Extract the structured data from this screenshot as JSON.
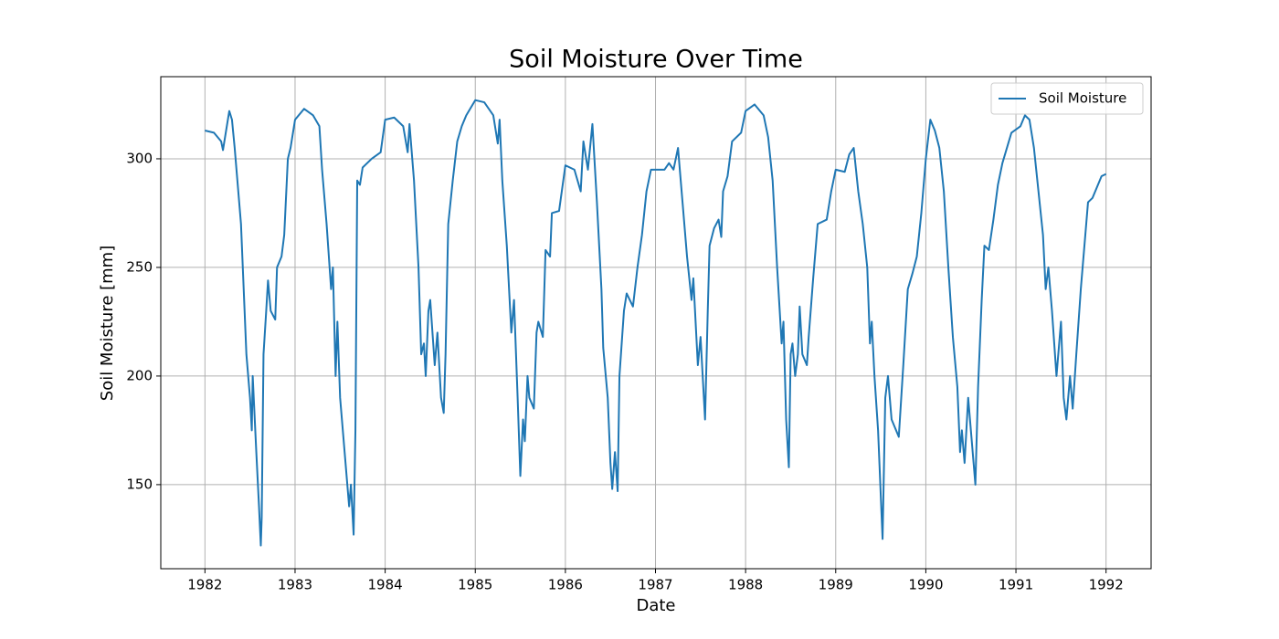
{
  "chart_data": {
    "type": "line",
    "title": "Soil Moisture Over Time",
    "xlabel": "Date",
    "ylabel": "Soil Moisture [mm]",
    "x": [
      1982.0,
      1982.1,
      1982.18,
      1982.2,
      1982.27,
      1982.3,
      1982.33,
      1982.4,
      1982.46,
      1982.5,
      1982.52,
      1982.53,
      1982.57,
      1982.6,
      1982.62,
      1982.63,
      1982.65,
      1982.68,
      1982.7,
      1982.73,
      1982.78,
      1982.8,
      1982.85,
      1982.88,
      1982.92,
      1982.95,
      1983.0,
      1983.1,
      1983.2,
      1983.27,
      1983.3,
      1983.35,
      1983.4,
      1983.42,
      1983.45,
      1983.47,
      1983.5,
      1983.55,
      1983.6,
      1983.62,
      1983.65,
      1983.67,
      1983.69,
      1983.72,
      1983.75,
      1983.85,
      1983.95,
      1984.0,
      1984.1,
      1984.2,
      1984.25,
      1984.27,
      1984.32,
      1984.37,
      1984.4,
      1984.43,
      1984.45,
      1984.48,
      1984.5,
      1984.55,
      1984.58,
      1984.62,
      1984.65,
      1984.67,
      1984.7,
      1984.75,
      1984.8,
      1984.85,
      1984.9,
      1985.0,
      1985.1,
      1985.2,
      1985.25,
      1985.27,
      1985.3,
      1985.35,
      1985.4,
      1985.43,
      1985.47,
      1985.5,
      1985.53,
      1985.55,
      1985.58,
      1985.6,
      1985.65,
      1985.68,
      1985.7,
      1985.75,
      1985.78,
      1985.83,
      1985.85,
      1985.93,
      1986.0,
      1986.1,
      1986.17,
      1986.2,
      1986.25,
      1986.3,
      1986.35,
      1986.4,
      1986.42,
      1986.47,
      1986.5,
      1986.52,
      1986.55,
      1986.58,
      1986.6,
      1986.65,
      1986.68,
      1986.75,
      1986.8,
      1986.85,
      1986.9,
      1986.95,
      1987.1,
      1987.15,
      1987.2,
      1987.25,
      1987.28,
      1987.3,
      1987.35,
      1987.4,
      1987.42,
      1987.47,
      1987.5,
      1987.55,
      1987.58,
      1987.6,
      1987.65,
      1987.7,
      1987.73,
      1987.75,
      1987.8,
      1987.85,
      1987.95,
      1988.0,
      1988.1,
      1988.2,
      1988.25,
      1988.3,
      1988.35,
      1988.4,
      1988.42,
      1988.45,
      1988.48,
      1988.5,
      1988.52,
      1988.55,
      1988.58,
      1988.6,
      1988.63,
      1988.68,
      1988.7,
      1988.75,
      1988.8,
      1988.9,
      1988.95,
      1989.0,
      1989.1,
      1989.15,
      1989.2,
      1989.25,
      1989.3,
      1989.35,
      1989.38,
      1989.4,
      1989.43,
      1989.47,
      1989.5,
      1989.52,
      1989.55,
      1989.58,
      1989.62,
      1989.7,
      1989.75,
      1989.8,
      1989.85,
      1989.9,
      1989.95,
      1990.0,
      1990.05,
      1990.1,
      1990.15,
      1990.2,
      1990.25,
      1990.3,
      1990.35,
      1990.38,
      1990.4,
      1990.43,
      1990.47,
      1990.5,
      1990.55,
      1990.58,
      1990.62,
      1990.65,
      1990.7,
      1990.75,
      1990.8,
      1990.85,
      1990.95,
      1991.05,
      1991.1,
      1991.15,
      1991.2,
      1991.25,
      1991.3,
      1991.33,
      1991.36,
      1991.4,
      1991.45,
      1991.5,
      1991.53,
      1991.56,
      1991.6,
      1991.63,
      1991.67,
      1991.72,
      1991.77,
      1991.8,
      1991.85,
      1991.95,
      1992.0
    ],
    "series": [
      {
        "name": "Soil Moisture",
        "color": "#1f77b4",
        "values": [
          313,
          312,
          308,
          304,
          322,
          318,
          305,
          270,
          210,
          190,
          175,
          200,
          165,
          140,
          122,
          135,
          210,
          230,
          244,
          230,
          226,
          250,
          255,
          265,
          300,
          305,
          318,
          323,
          320,
          315,
          295,
          270,
          240,
          250,
          200,
          225,
          190,
          165,
          140,
          150,
          127,
          175,
          290,
          288,
          296,
          300,
          303,
          318,
          319,
          315,
          303,
          316,
          290,
          250,
          210,
          215,
          200,
          230,
          235,
          205,
          220,
          190,
          183,
          210,
          270,
          290,
          308,
          315,
          320,
          327,
          326,
          320,
          307,
          318,
          290,
          260,
          220,
          235,
          190,
          154,
          180,
          170,
          200,
          190,
          185,
          220,
          225,
          218,
          258,
          255,
          275,
          276,
          297,
          295,
          285,
          308,
          295,
          316,
          280,
          240,
          213,
          190,
          160,
          148,
          165,
          147,
          200,
          230,
          238,
          232,
          250,
          265,
          285,
          295,
          295,
          298,
          295,
          305,
          290,
          280,
          255,
          235,
          245,
          205,
          218,
          180,
          230,
          260,
          268,
          272,
          264,
          285,
          292,
          308,
          312,
          322,
          325,
          320,
          310,
          290,
          250,
          215,
          225,
          180,
          158,
          210,
          215,
          200,
          210,
          232,
          210,
          205,
          218,
          245,
          270,
          272,
          285,
          295,
          294,
          302,
          305,
          285,
          270,
          250,
          215,
          225,
          200,
          175,
          145,
          125,
          190,
          200,
          180,
          172,
          205,
          240,
          247,
          255,
          275,
          300,
          318,
          313,
          305,
          285,
          250,
          218,
          195,
          165,
          175,
          160,
          190,
          175,
          150,
          195,
          235,
          260,
          258,
          272,
          288,
          298,
          312,
          315,
          320,
          318,
          305,
          285,
          265,
          240,
          250,
          230,
          200,
          225,
          190,
          180,
          200,
          185,
          210,
          240,
          265,
          280,
          282,
          292,
          293
        ]
      }
    ],
    "xlim": [
      1981.51,
      1992.5
    ],
    "xticks": [
      1982,
      1983,
      1984,
      1985,
      1986,
      1987,
      1988,
      1989,
      1990,
      1991,
      1992
    ],
    "ylim": [
      111.3,
      337.8
    ],
    "yticks": [
      150,
      200,
      250,
      300
    ],
    "grid": true,
    "legend": "upper right"
  }
}
